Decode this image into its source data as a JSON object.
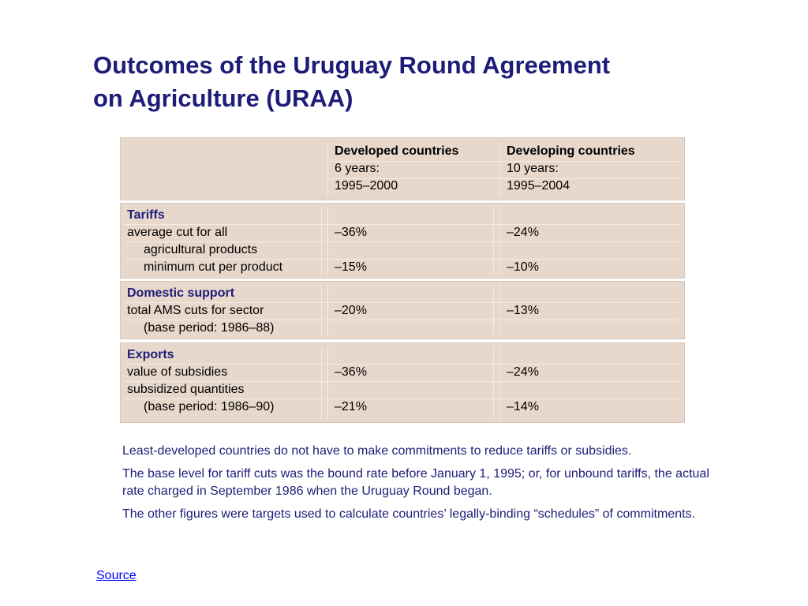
{
  "title": {
    "line1": "Outcomes of the Uruguay Round Agreement",
    "line2": "on Agriculture (URAA)"
  },
  "table": {
    "header": {
      "developed": {
        "name": "Developed countries",
        "period": "6 years:",
        "years": "1995–2000"
      },
      "developing": {
        "name": "Developing countries",
        "period": "10 years:",
        "years": "1995–2004"
      }
    },
    "tariffs": {
      "heading": "Tariffs",
      "row1_label_a": "average cut for all",
      "row1_label_b": "agricultural products",
      "row1_developed": "–36%",
      "row1_developing": "–24%",
      "row2_label": "minimum cut per product",
      "row2_developed": "–15%",
      "row2_developing": "–10%"
    },
    "domestic": {
      "heading": "Domestic support",
      "row1_label": "total AMS cuts for sector",
      "row1_sub": "(base period: 1986–88)",
      "row1_developed": "–20%",
      "row1_developing": "–13%"
    },
    "exports": {
      "heading": "Exports",
      "row1_label": "value of subsidies",
      "row1_developed": "–36%",
      "row1_developing": "–24%",
      "row2_label": "subsidized quantities",
      "row2_sub": "(base period: 1986–90)",
      "row2_developed": "–21%",
      "row2_developing": "–14%"
    }
  },
  "notes": [
    "Least-developed countries do not have to make commitments to reduce tariffs or subsidies.",
    "The base level for tariff cuts was the bound rate before January 1, 1995; or, for unbound tariffs, the actual rate charged in September 1986 when the Uruguay Round began.",
    "The other figures were targets used to calculate countries’ legally-binding “schedules” of commitments."
  ],
  "source_link": "Source",
  "colors": {
    "title": "#1d1d78",
    "table_fill": "#e8d8cc",
    "link": "#0000ff"
  }
}
